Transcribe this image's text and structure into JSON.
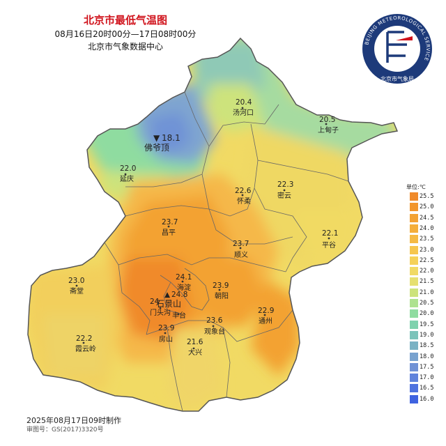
{
  "title": "北京市最低气温图",
  "period": "08月16日20时00分—17日08时00分",
  "issuer": "北京市气象数据中心",
  "logo": {
    "ring_text": "BEIJING METEOROLOGICAL SERVICE",
    "inner_text": "北京市气象局",
    "colors": [
      "#1d3a7a",
      "#ffffff",
      "#d0121b"
    ]
  },
  "legend": {
    "unit": "单位:℃",
    "items": [
      {
        "value": "25.5",
        "color": "#f08a2a"
      },
      {
        "value": "25.0",
        "color": "#f2962c"
      },
      {
        "value": "24.5",
        "color": "#f3a233"
      },
      {
        "value": "24.0",
        "color": "#f4ae3a"
      },
      {
        "value": "23.5",
        "color": "#f5ba44"
      },
      {
        "value": "23.0",
        "color": "#f6c64e"
      },
      {
        "value": "22.5",
        "color": "#f5d158"
      },
      {
        "value": "22.0",
        "color": "#f1da64"
      },
      {
        "value": "21.5",
        "color": "#e6e070"
      },
      {
        "value": "21.0",
        "color": "#cde37c"
      },
      {
        "value": "20.5",
        "color": "#aee290"
      },
      {
        "value": "20.0",
        "color": "#8fdca0"
      },
      {
        "value": "19.5",
        "color": "#7fd2ae"
      },
      {
        "value": "19.0",
        "color": "#7cc3ba"
      },
      {
        "value": "18.5",
        "color": "#7ab2c4"
      },
      {
        "value": "18.0",
        "color": "#78a2cf"
      },
      {
        "value": "17.5",
        "color": "#7092d6"
      },
      {
        "value": "17.0",
        "color": "#6083dc"
      },
      {
        "value": "16.5",
        "color": "#4f73df"
      },
      {
        "value": "16.0",
        "color": "#3f63e0"
      }
    ]
  },
  "stations": [
    {
      "name": "汤河口",
      "value": "20.4"
    },
    {
      "name": "上甸子",
      "value": "20.5"
    },
    {
      "name": "佛爷顶",
      "value": "18.1",
      "marker": "▼"
    },
    {
      "name": "延庆",
      "value": "22.0"
    },
    {
      "name": "怀柔",
      "value": "22.6"
    },
    {
      "name": "密云",
      "value": "22.3"
    },
    {
      "name": "昌平",
      "value": "23.7"
    },
    {
      "name": "平谷",
      "value": "22.1"
    },
    {
      "name": "顺义",
      "value": "23.7"
    },
    {
      "name": "斋堂",
      "value": "23.0"
    },
    {
      "name": "海淀",
      "value": "24.1"
    },
    {
      "name": "石景山",
      "value": "24.8",
      "marker": "▲"
    },
    {
      "name": "门头沟",
      "value": "24"
    },
    {
      "name": "朝阳",
      "value": "23.9"
    },
    {
      "name": "丰台",
      "value": ""
    },
    {
      "name": "通州",
      "value": "22.9"
    },
    {
      "name": "房山",
      "value": "23.9"
    },
    {
      "name": "观象台",
      "value": "23.6"
    },
    {
      "name": "霞云岭",
      "value": "22.2"
    },
    {
      "name": "大兴",
      "value": "21.6"
    }
  ],
  "footer": {
    "made_time": "2025年08月17日09时制作",
    "approval": "审图号：GS(2017)3320号"
  }
}
